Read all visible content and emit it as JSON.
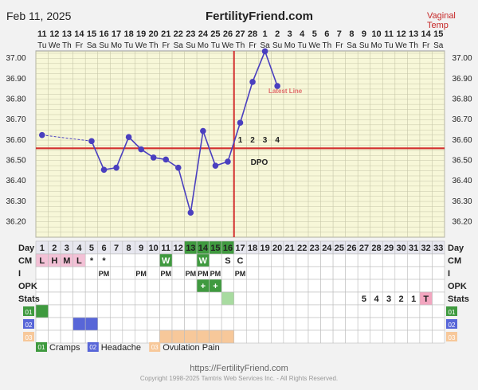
{
  "header": {
    "date": "Feb 11, 2025",
    "site": "FertilityFriend.com",
    "right_label": "Vaginal Temp"
  },
  "footer": {
    "url": "https://FertilityFriend.com",
    "copyright": "Copyright 1998-2025 Tamtris Web Services Inc. - All Rights Reserved."
  },
  "colors": {
    "grid_bg": "#f7f7d8",
    "grid_line": "#c6c6a8",
    "line": "#4a3fbf",
    "coverline": "#d32f2f",
    "day_bg": "#e7e7ef",
    "green": "#3f9a3f",
    "light_green": "#a8dba0",
    "pink": "#f3c1d6",
    "blue": "#5866d8",
    "peach": "#f7c89a",
    "tmark": "#f3a6c0"
  },
  "chart_data": {
    "type": "line",
    "title": "",
    "xlabel": "",
    "ylabel": "",
    "dates": [
      "11",
      "12",
      "13",
      "14",
      "15",
      "16",
      "17",
      "18",
      "19",
      "20",
      "21",
      "22",
      "23",
      "24",
      "25",
      "26",
      "27",
      "28",
      "1",
      "2",
      "3",
      "4",
      "5",
      "6",
      "7",
      "8",
      "9",
      "10",
      "11",
      "12",
      "13",
      "14",
      "15"
    ],
    "weekdays": [
      "Tu",
      "We",
      "Th",
      "Fr",
      "Sa",
      "Su",
      "Mo",
      "Tu",
      "We",
      "Th",
      "Fr",
      "Sa",
      "Su",
      "Mo",
      "Tu",
      "We",
      "Th",
      "Fr",
      "Sa",
      "Su",
      "Mo",
      "Tu",
      "We",
      "Th",
      "Fr",
      "Sa",
      "Su",
      "Mo",
      "Tu",
      "We",
      "Th",
      "Fr",
      "Sa"
    ],
    "days": [
      "1",
      "2",
      "3",
      "4",
      "5",
      "6",
      "7",
      "8",
      "9",
      "10",
      "11",
      "12",
      "13",
      "14",
      "15",
      "16",
      "17",
      "18",
      "19",
      "20",
      "21",
      "22",
      "23",
      "24",
      "25",
      "26",
      "27",
      "28",
      "29",
      "30",
      "31",
      "32",
      "33"
    ],
    "temperatures": [
      36.62,
      null,
      null,
      null,
      36.59,
      36.45,
      36.46,
      36.61,
      36.55,
      36.51,
      36.5,
      36.46,
      36.24,
      36.64,
      36.47,
      36.49,
      36.68,
      36.88,
      37.03,
      36.86,
      null,
      null,
      null,
      null,
      null,
      null,
      null,
      null,
      null,
      null,
      null,
      null,
      null
    ],
    "dashed_segment_days": [
      1,
      5
    ],
    "ylim": [
      36.12,
      37.09
    ],
    "y_ticks": [
      "37.00",
      "36.90",
      "36.80",
      "36.70",
      "36.60",
      "36.50",
      "36.40",
      "36.30",
      "36.20"
    ],
    "coverline_temp": 36.555,
    "ovulation_day": 16,
    "dpo_labels": [
      "1",
      "2",
      "3",
      "4"
    ],
    "dpo_text": "DPO",
    "latest_line_text": "Latest Line",
    "row_labels": {
      "day": "Day",
      "cm": "CM",
      "i": "I",
      "opk": "OPK",
      "stats": "Stats",
      "cd01": "01",
      "cd02": "02",
      "cd03": "03"
    },
    "cm": [
      {
        "day": 1,
        "value": "L",
        "bg": "pink"
      },
      {
        "day": 2,
        "value": "H",
        "bg": "pink"
      },
      {
        "day": 3,
        "value": "M",
        "bg": "pink"
      },
      {
        "day": 4,
        "value": "L",
        "bg": "pink"
      },
      {
        "day": 5,
        "value": "*",
        "bg": ""
      },
      {
        "day": 6,
        "value": "*",
        "bg": ""
      },
      {
        "day": 11,
        "value": "W",
        "bg": "green"
      },
      {
        "day": 14,
        "value": "W",
        "bg": "green"
      },
      {
        "day": 16,
        "value": "S",
        "bg": ""
      },
      {
        "day": 17,
        "value": "C",
        "bg": ""
      }
    ],
    "intercourse": [
      {
        "day": 6,
        "value": "PM"
      },
      {
        "day": 9,
        "value": "PM"
      },
      {
        "day": 11,
        "value": "PM"
      },
      {
        "day": 13,
        "value": "PM"
      },
      {
        "day": 14,
        "value": "PM"
      },
      {
        "day": 15,
        "value": "PM"
      },
      {
        "day": 17,
        "value": "PM"
      }
    ],
    "opk": [
      {
        "day": 14,
        "value": "+",
        "bg": "green"
      },
      {
        "day": 15,
        "value": "+",
        "bg": "green"
      }
    ],
    "stats": [
      {
        "day": 16,
        "value": "",
        "bg": "light_green"
      },
      {
        "day": 27,
        "value": "5",
        "bg": ""
      },
      {
        "day": 28,
        "value": "4",
        "bg": ""
      },
      {
        "day": 29,
        "value": "3",
        "bg": ""
      },
      {
        "day": 30,
        "value": "2",
        "bg": ""
      },
      {
        "day": 31,
        "value": "1",
        "bg": ""
      },
      {
        "day": 32,
        "value": "T",
        "bg": "tmark"
      }
    ],
    "symptoms": [
      {
        "code": "01",
        "name": "Cramps",
        "color": "green",
        "days": [
          1
        ]
      },
      {
        "code": "02",
        "name": "Headache",
        "color": "blue",
        "days": [
          4,
          5
        ]
      },
      {
        "code": "03",
        "name": "Ovulation Pain",
        "color": "peach",
        "days": [
          11,
          12,
          13,
          14,
          15,
          16
        ]
      }
    ],
    "highlight_days": {
      "13": "green",
      "14": "green",
      "15": "green",
      "16": "green"
    }
  }
}
